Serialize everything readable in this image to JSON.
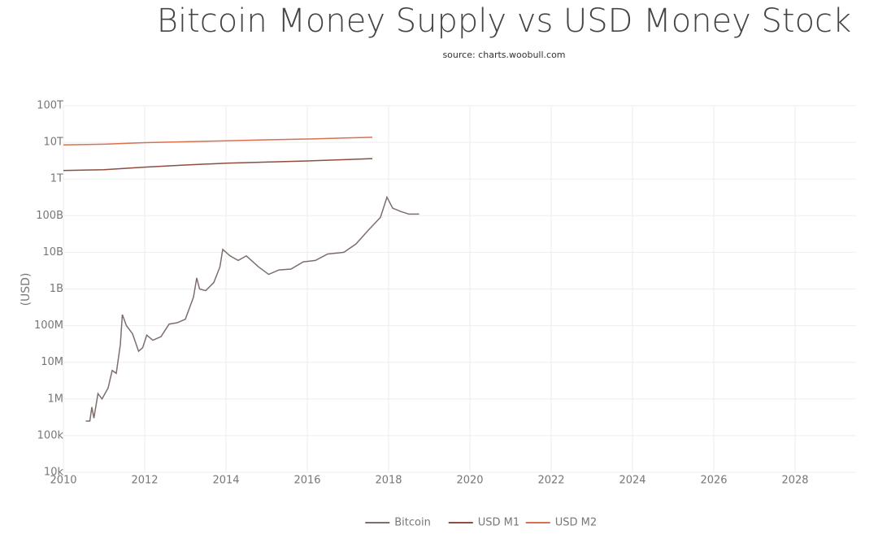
{
  "chart_data": {
    "type": "line",
    "title": "Bitcoin Money Supply vs USD Money Stock",
    "subtitle": "source: charts.woobull.com",
    "y_label": "(USD)",
    "y_scale": "log",
    "grid": true,
    "legend": "bottom",
    "xlim": [
      2010,
      2029.5
    ],
    "xticks": [
      2010,
      2012,
      2014,
      2016,
      2018,
      2020,
      2022,
      2024,
      2026,
      2028
    ],
    "ylim": [
      10000,
      100000000000000
    ],
    "yticks": [
      {
        "value": 10000,
        "label": "10k"
      },
      {
        "value": 100000,
        "label": "100k"
      },
      {
        "value": 1000000,
        "label": "1M"
      },
      {
        "value": 10000000,
        "label": "10M"
      },
      {
        "value": 100000000,
        "label": "100M"
      },
      {
        "value": 1000000000,
        "label": "1B"
      },
      {
        "value": 10000000000,
        "label": "10B"
      },
      {
        "value": 100000000000,
        "label": "100B"
      },
      {
        "value": 1000000000000,
        "label": "1T"
      },
      {
        "value": 10000000000000,
        "label": "10T"
      },
      {
        "value": 100000000000000,
        "label": "100T"
      }
    ],
    "series": [
      {
        "name": "Bitcoin",
        "color": "#7d6e6c",
        "x": [
          2010.55,
          2010.65,
          2010.7,
          2010.75,
          2010.85,
          2010.95,
          2011.1,
          2011.2,
          2011.3,
          2011.4,
          2011.45,
          2011.55,
          2011.7,
          2011.85,
          2011.95,
          2012.05,
          2012.2,
          2012.4,
          2012.6,
          2012.8,
          2013.0,
          2013.2,
          2013.28,
          2013.35,
          2013.5,
          2013.7,
          2013.85,
          2013.92,
          2014.1,
          2014.3,
          2014.5,
          2014.8,
          2015.05,
          2015.3,
          2015.6,
          2015.9,
          2016.2,
          2016.5,
          2016.9,
          2017.2,
          2017.5,
          2017.8,
          2017.96,
          2018.1,
          2018.3,
          2018.5,
          2018.75
        ],
        "values": [
          250000,
          250000,
          600000,
          300000,
          1400000,
          1000000,
          2000000,
          6000000,
          5000000,
          30000000,
          200000000,
          100000000,
          60000000,
          20000000,
          25000000,
          55000000,
          40000000,
          50000000,
          110000000,
          120000000,
          150000000,
          600000000,
          2000000000,
          1000000000,
          900000000,
          1500000000,
          4000000000,
          12000000000,
          8000000000,
          6000000000,
          8000000000,
          4000000000,
          2500000000,
          3300000000,
          3500000000,
          5500000000,
          6000000000,
          9000000000,
          10000000000,
          17000000000,
          40000000000,
          90000000000,
          320000000000,
          160000000000,
          130000000000,
          110000000000,
          110000000000
        ]
      },
      {
        "name": "USD M1",
        "color": "#8e4d3e",
        "x": [
          2010,
          2011,
          2012,
          2013,
          2014,
          2015,
          2016,
          2017,
          2017.6
        ],
        "values": [
          1700000000000,
          1800000000000,
          2100000000000,
          2400000000000,
          2700000000000,
          2900000000000,
          3100000000000,
          3400000000000,
          3600000000000
        ]
      },
      {
        "name": "USD M2",
        "color": "#d9704f",
        "x": [
          2010,
          2011,
          2012,
          2013,
          2014,
          2015,
          2016,
          2017,
          2017.6
        ],
        "values": [
          8500000000000,
          8900000000000,
          9800000000000,
          10400000000000,
          11000000000000,
          11700000000000,
          12300000000000,
          13200000000000,
          13700000000000
        ]
      }
    ]
  }
}
